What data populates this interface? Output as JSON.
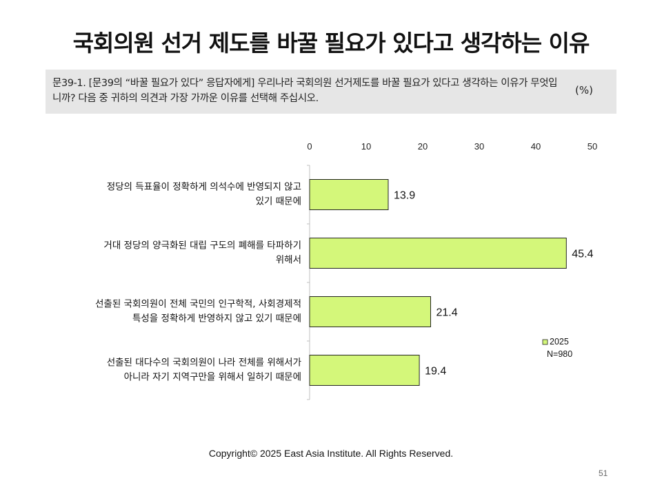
{
  "title": "국회의원 선거 제도를 바꿀 필요가 있다고 생각하는 이유",
  "question": {
    "text": "문39-1. [문39의 “바꿀 필요가 있다” 응답자에게] 우리나라 국회의원 선거제도를 바꿀 필요가 있다고 생각하는 이유가 무엇입니까? 다음 중 귀하의 의견과 가장 가까운 이유를 선택해 주십시오.",
    "unit": "(%)"
  },
  "chart_data": {
    "type": "bar",
    "orientation": "horizontal",
    "categories": [
      [
        "정당의 득표율이 정확하게 의석수에 반영되지 않고",
        "있기 때문에"
      ],
      [
        "거대 정당의 양극화된 대립 구도의 폐해를 타파하기",
        "위해서"
      ],
      [
        "선출된 국회의원이 전체 국민의 인구학적, 사회경제적",
        "특성을 정확하게 반영하지 않고 있기 때문에"
      ],
      [
        "선출된 대다수의 국회의원이 나라 전체를 위해서가",
        "아니라 자기 지역구만을 위해서 일하기 때문에"
      ]
    ],
    "series": [
      {
        "name": "2025",
        "values": [
          13.9,
          45.4,
          21.4,
          19.4
        ],
        "color": "#d4f77a"
      }
    ],
    "ticks": [
      "0",
      "10",
      "20",
      "30",
      "40",
      "50"
    ],
    "xlim": [
      0,
      50
    ],
    "tick_position": "top",
    "grid": false,
    "legend": {
      "position": "bottom-right",
      "items": [
        "2025"
      ],
      "note": "N=980"
    },
    "bar_stroke": "#222222"
  },
  "footer": {
    "copyright": "Copyright© 2025 East Asia Institute. All Rights Reserved.",
    "page": "51"
  }
}
